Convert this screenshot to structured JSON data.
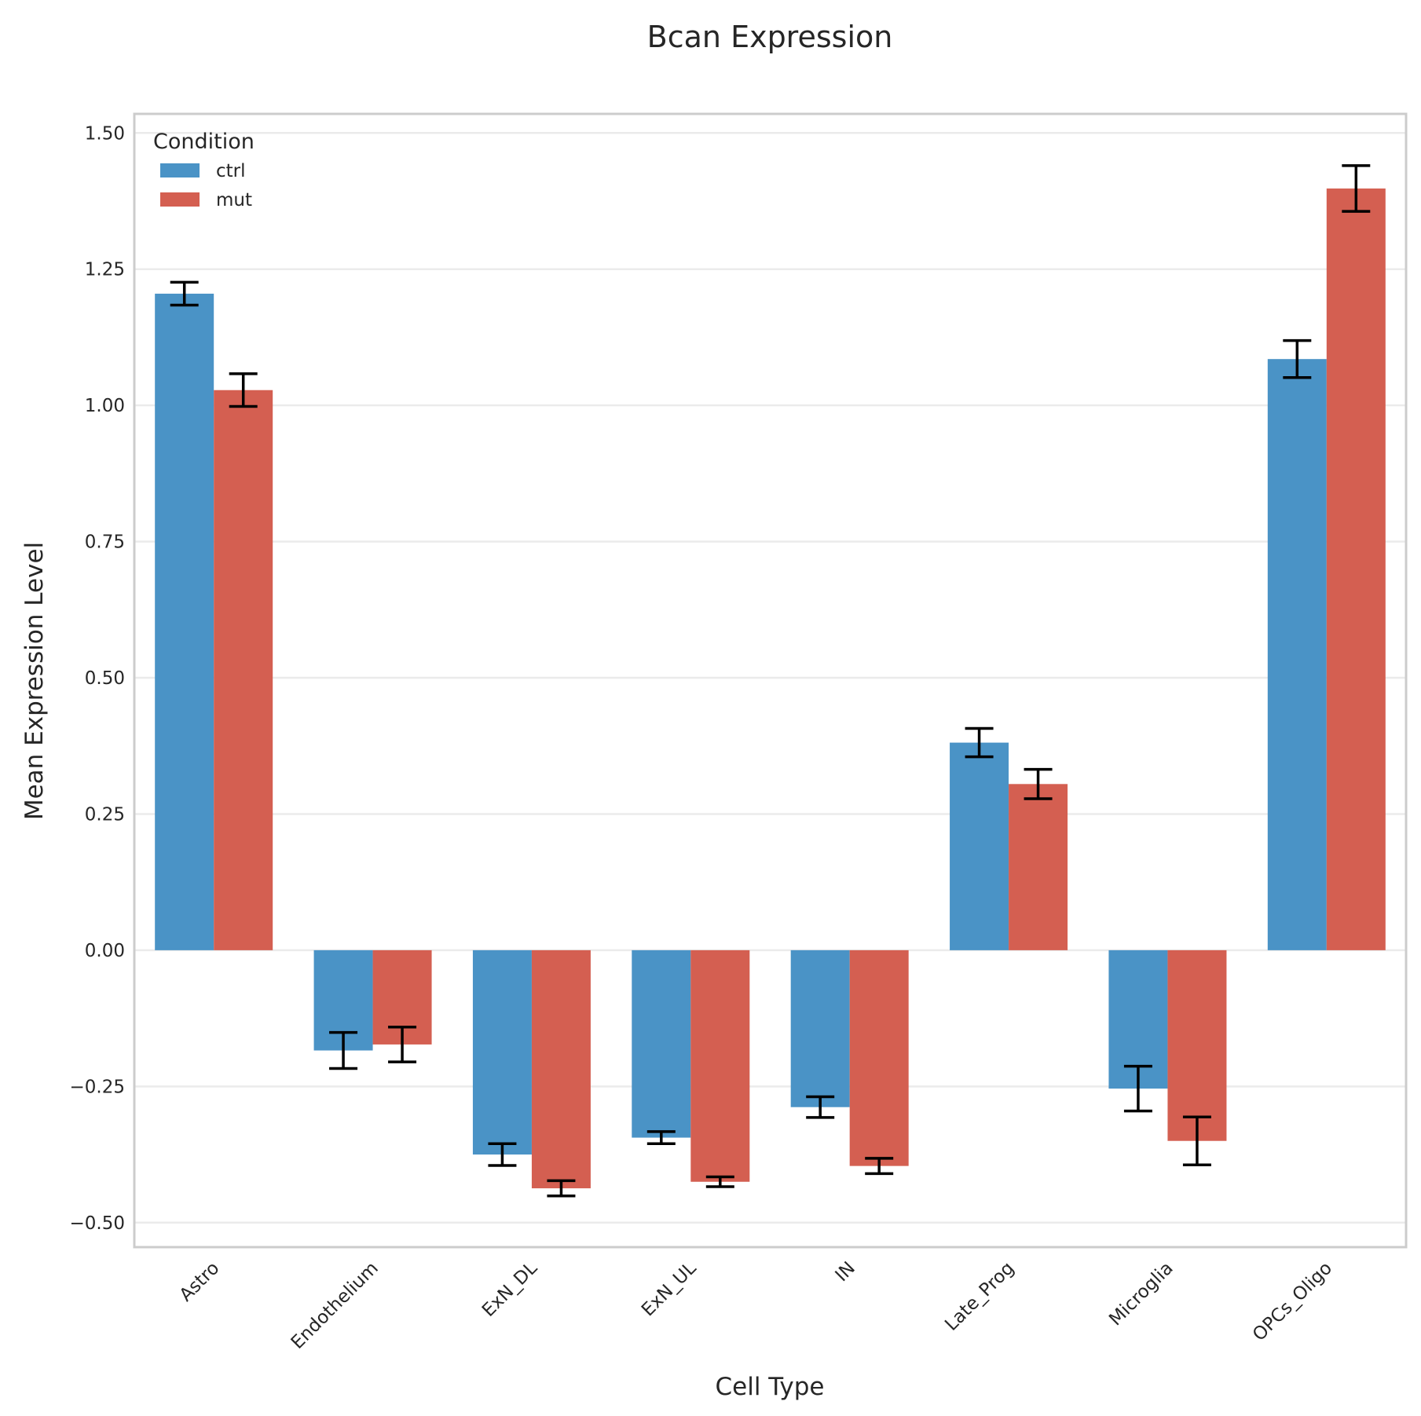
{
  "chart_data": {
    "type": "bar",
    "title": "Bcan Expression",
    "xlabel": "Cell Type",
    "ylabel": "Mean Expression Level",
    "categories": [
      "Astro",
      "Endothelium",
      "ExN_DL",
      "ExN_UL",
      "IN",
      "Late_Prog",
      "Microglia",
      "OPCs_Oligo"
    ],
    "series": [
      {
        "name": "ctrl",
        "color": "#4a93c6",
        "values": [
          1.205,
          -0.184,
          -0.375,
          -0.344,
          -0.288,
          0.381,
          -0.254,
          1.085
        ],
        "errors": [
          0.021,
          0.033,
          0.02,
          0.011,
          0.019,
          0.026,
          0.041,
          0.034
        ]
      },
      {
        "name": "mut",
        "color": "#d45f51",
        "values": [
          1.028,
          -0.173,
          -0.437,
          -0.425,
          -0.396,
          0.305,
          -0.35,
          1.398
        ],
        "errors": [
          0.03,
          0.032,
          0.014,
          0.009,
          0.014,
          0.027,
          0.044,
          0.042
        ]
      }
    ],
    "ylim": [
      -0.545,
      1.535
    ],
    "yticks": [
      -0.5,
      -0.25,
      0.0,
      0.25,
      0.5,
      0.75,
      1.0,
      1.25,
      1.5
    ],
    "ytick_labels": [
      "−0.50",
      "−0.25",
      "0.00",
      "0.25",
      "0.50",
      "0.75",
      "1.00",
      "1.25",
      "1.50"
    ],
    "legend": {
      "title": "Condition",
      "placement": "top-left"
    },
    "grid": "y"
  }
}
